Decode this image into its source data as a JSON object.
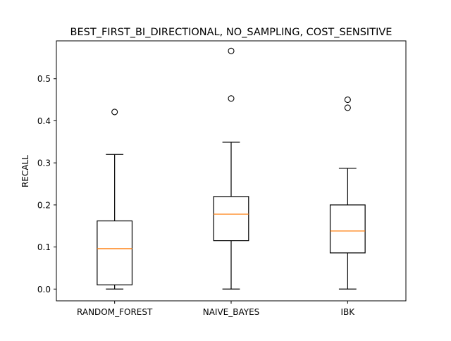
{
  "chart_data": {
    "type": "boxplot",
    "title": "BEST_FIRST_BI_DIRECTIONAL, NO_SAMPLING, COST_SENSITIVE",
    "xlabel": "",
    "ylabel": "RECALL",
    "ylim": [
      -0.028,
      0.59
    ],
    "yticks": [
      0.0,
      0.1,
      0.2,
      0.3,
      0.4,
      0.5
    ],
    "ytick_labels": [
      "0.0",
      "0.1",
      "0.2",
      "0.3",
      "0.4",
      "0.5"
    ],
    "grid": false,
    "categories": [
      "RANDOM_FOREST",
      "NAIVE_BAYES",
      "IBK"
    ],
    "boxes": [
      {
        "category": "RANDOM_FOREST",
        "whisker_low": 0.0,
        "q1": 0.01,
        "median": 0.096,
        "q3": 0.162,
        "whisker_high": 0.32,
        "outliers": [
          0.421
        ]
      },
      {
        "category": "NAIVE_BAYES",
        "whisker_low": 0.0,
        "q1": 0.115,
        "median": 0.178,
        "q3": 0.22,
        "whisker_high": 0.349,
        "outliers": [
          0.453,
          0.566
        ]
      },
      {
        "category": "IBK",
        "whisker_low": 0.0,
        "q1": 0.086,
        "median": 0.138,
        "q3": 0.2,
        "whisker_high": 0.287,
        "outliers": [
          0.431,
          0.45
        ]
      }
    ],
    "colors": {
      "box": "#000000",
      "median": "#ff7f0e",
      "outlier_edge": "#000000"
    }
  }
}
